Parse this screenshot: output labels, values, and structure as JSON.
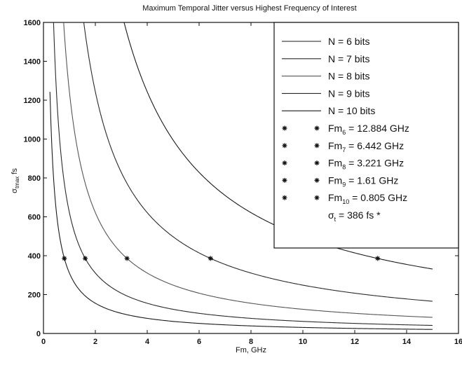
{
  "chart_data": {
    "type": "line",
    "title": "Maximum Temporal Jitter versus Highest Frequency of Interest",
    "xlabel": "Fm, GHz",
    "ylabel": {
      "base": "σ",
      "sub": "tmax",
      "unit": "fs"
    },
    "xlim": [
      0,
      16
    ],
    "ylim": [
      0,
      1600
    ],
    "xticks": [
      0,
      2,
      4,
      6,
      8,
      10,
      12,
      14,
      16
    ],
    "yticks": [
      0,
      200,
      400,
      600,
      800,
      1000,
      1200,
      1400,
      1600
    ],
    "grid": false,
    "legend_position": "top-right",
    "x_range": [
      0.25,
      15
    ],
    "series": [
      {
        "name": "N = 6 bits",
        "kind": "curve",
        "bits": 6,
        "k": 4972,
        "color": "#1a1a1a"
      },
      {
        "name": "N = 7 bits",
        "kind": "curve",
        "bits": 7,
        "k": 2486,
        "color": "#2a2a2a"
      },
      {
        "name": "N = 8 bits",
        "kind": "curve",
        "bits": 8,
        "k": 1243,
        "color": "#555555"
      },
      {
        "name": "N = 9 bits",
        "kind": "curve",
        "bits": 9,
        "k": 621.5,
        "color": "#2a2a2a"
      },
      {
        "name": "N = 10 bits",
        "kind": "curve",
        "bits": 10,
        "k": 310.7,
        "color": "#1a1a1a"
      }
    ],
    "points": [
      {
        "label_pre": "Fm",
        "label_sub": "6",
        "label_post": " = 12.884 GHz",
        "x": 12.884,
        "y": 386
      },
      {
        "label_pre": "Fm",
        "label_sub": "7",
        "label_post": " = 6.442 GHz",
        "x": 6.442,
        "y": 386
      },
      {
        "label_pre": "Fm",
        "label_sub": "8",
        "label_post": " = 3.221 GHz",
        "x": 3.221,
        "y": 386
      },
      {
        "label_pre": "Fm",
        "label_sub": "9",
        "label_post": " = 1.61 GHz",
        "x": 1.61,
        "y": 386
      },
      {
        "label_pre": "Fm",
        "label_sub": "10",
        "label_post": " = 0.805 GHz",
        "x": 0.805,
        "y": 386
      }
    ],
    "extra_legend": {
      "pre": "σ",
      "sub": "t",
      "post": " = 386 fs *"
    }
  }
}
